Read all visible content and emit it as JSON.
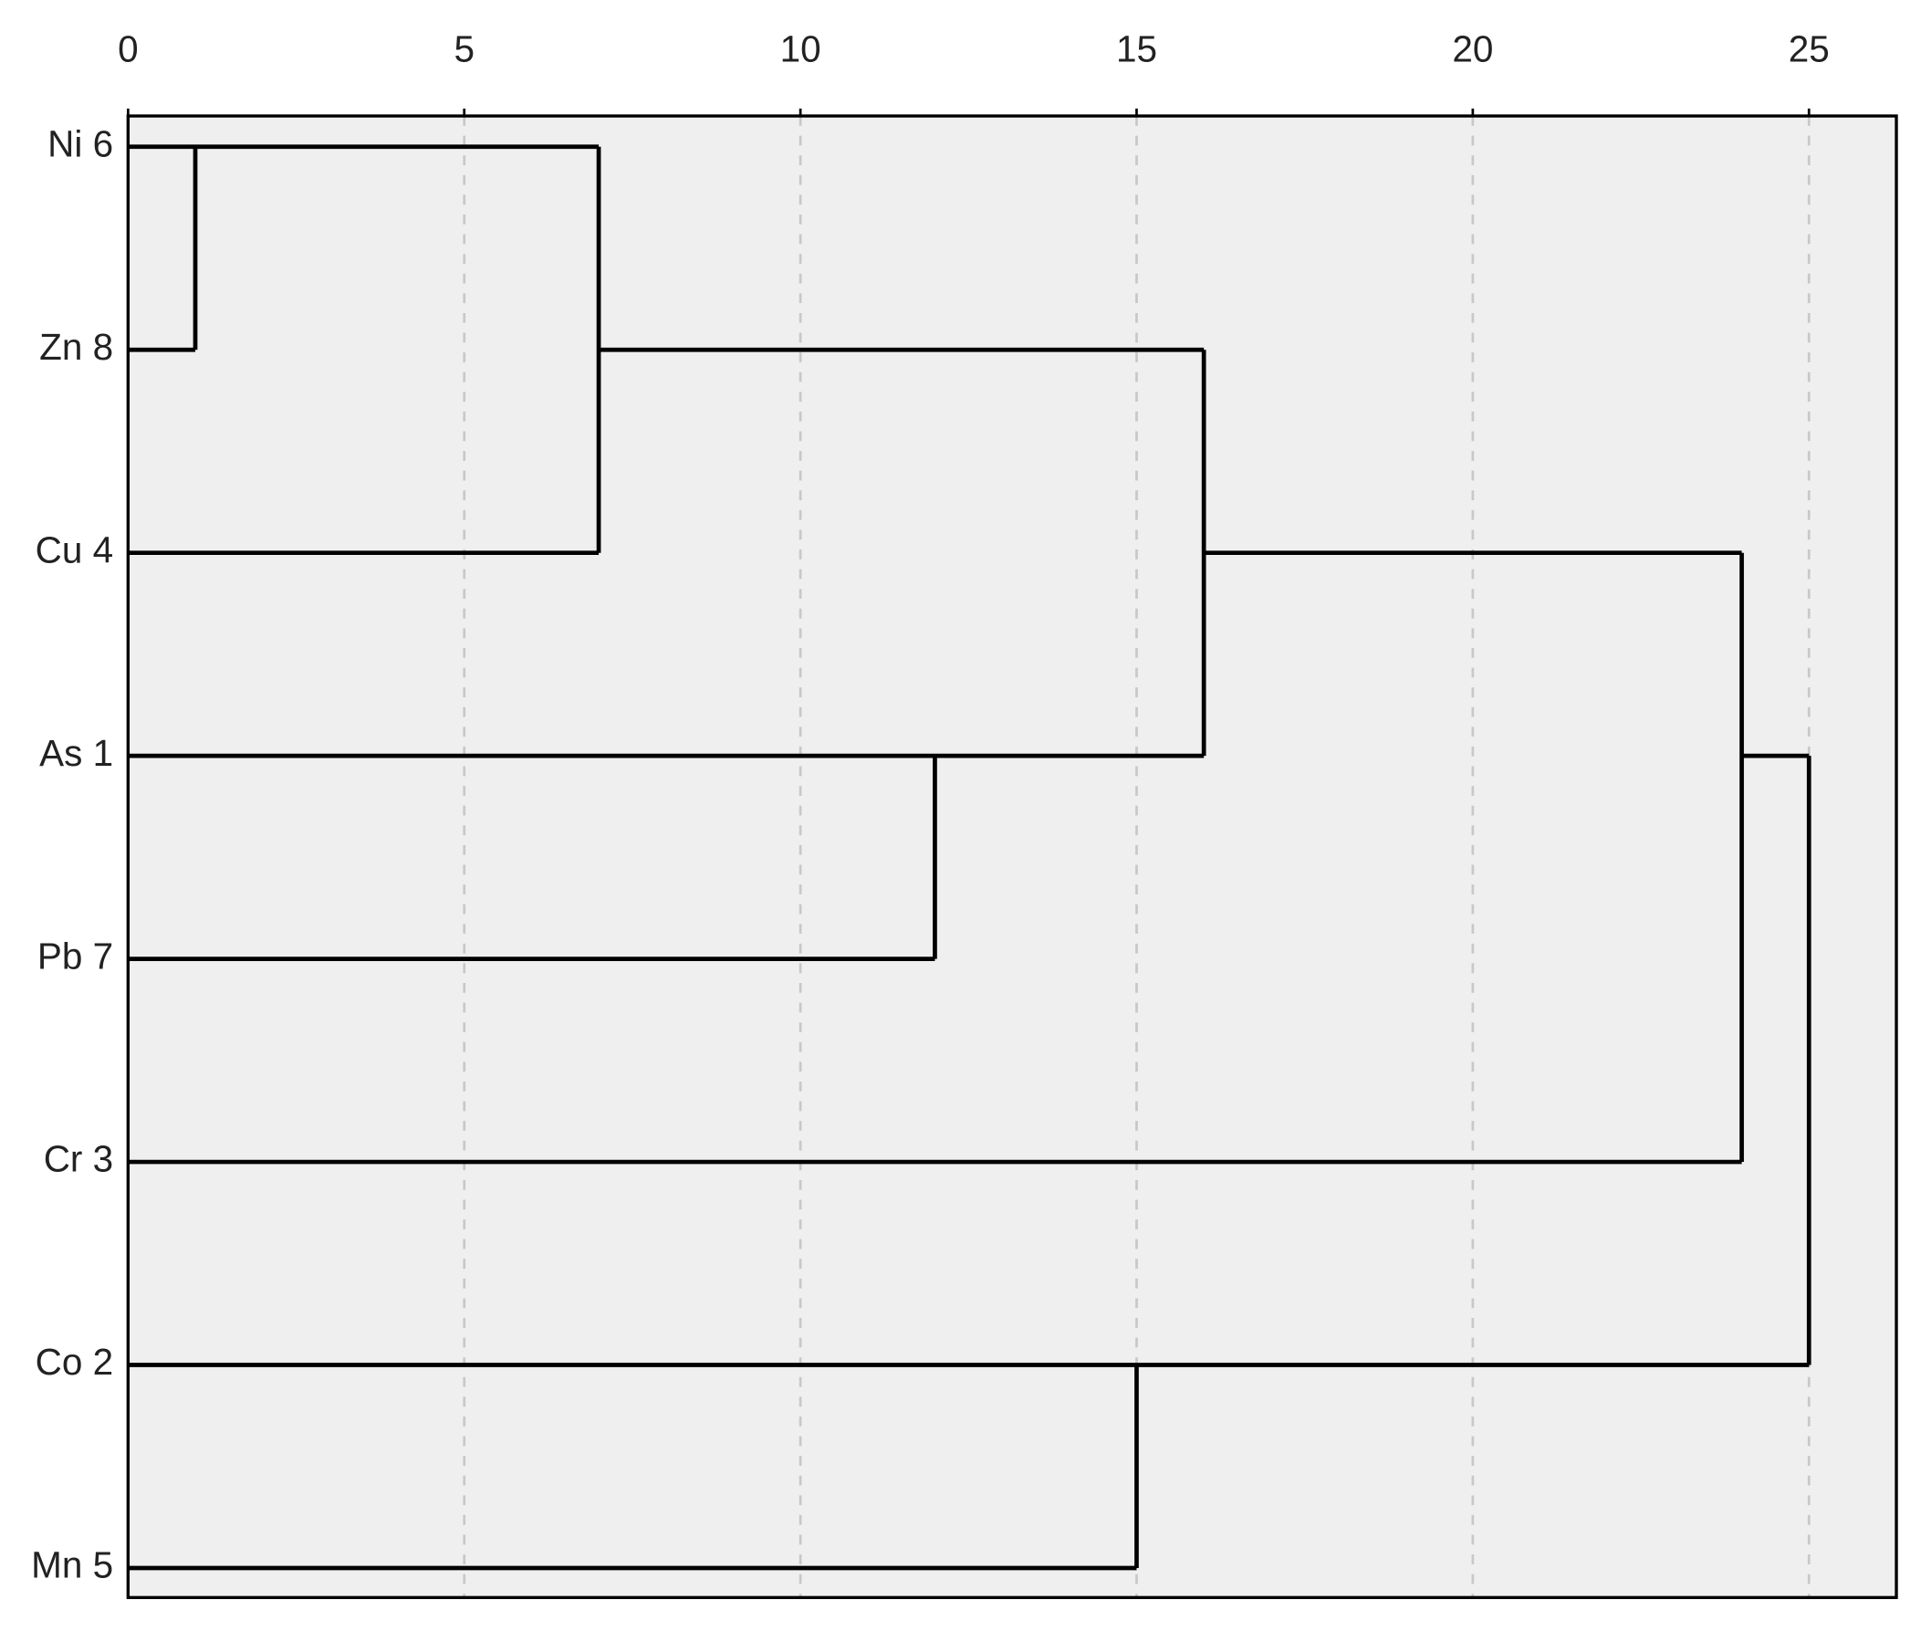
{
  "chart_data": {
    "type": "dendrogram",
    "xlim": [
      0,
      26.3
    ],
    "xticks": [
      0,
      5,
      10,
      15,
      20,
      25
    ],
    "grid": true,
    "color": "#000000",
    "tree": {
      "height": 25,
      "children": [
        {
          "height": 24,
          "children": [
            {
              "height": 16,
              "children": [
                {
                  "height": 7,
                  "children": [
                    {
                      "height": 1,
                      "children": [
                        "Ni 6",
                        "Zn 8"
                      ]
                    },
                    "Cu 4"
                  ]
                },
                {
                  "height": 12,
                  "children": [
                    "As 1",
                    "Pb 7"
                  ]
                }
              ]
            },
            "Cr 3"
          ]
        },
        {
          "height": 15,
          "children": [
            "Co 2",
            "Mn 5"
          ]
        }
      ]
    }
  }
}
